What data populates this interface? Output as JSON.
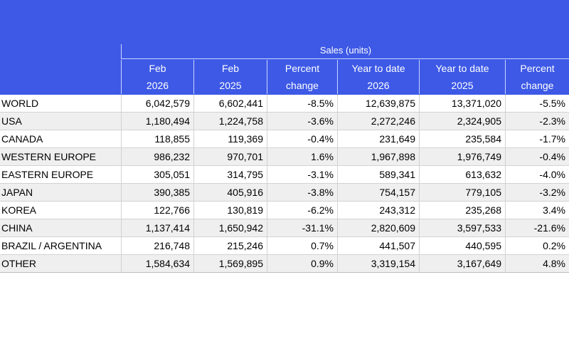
{
  "table": {
    "group_header": "Sales (units)",
    "columns": [
      {
        "line1": "Feb",
        "line2": "2026"
      },
      {
        "line1": "Feb",
        "line2": "2025"
      },
      {
        "line1": "Percent",
        "line2": "change"
      },
      {
        "line1": "Year to date",
        "line2": "2026"
      },
      {
        "line1": "Year to date",
        "line2": "2025"
      },
      {
        "line1": "Percent",
        "line2": "change"
      }
    ],
    "rows": [
      {
        "region": "WORLD",
        "feb_2026": "6,042,579",
        "feb_2025": "6,602,441",
        "pct_feb": "-8.5%",
        "ytd_2026": "12,639,875",
        "ytd_2025": "13,371,020",
        "pct_ytd": "-5.5%"
      },
      {
        "region": "USA",
        "feb_2026": "1,180,494",
        "feb_2025": "1,224,758",
        "pct_feb": "-3.6%",
        "ytd_2026": "2,272,246",
        "ytd_2025": "2,324,905",
        "pct_ytd": "-2.3%"
      },
      {
        "region": "CANADA",
        "feb_2026": "118,855",
        "feb_2025": "119,369",
        "pct_feb": "-0.4%",
        "ytd_2026": "231,649",
        "ytd_2025": "235,584",
        "pct_ytd": "-1.7%"
      },
      {
        "region": "WESTERN EUROPE",
        "feb_2026": "986,232",
        "feb_2025": "970,701",
        "pct_feb": "1.6%",
        "ytd_2026": "1,967,898",
        "ytd_2025": "1,976,749",
        "pct_ytd": "-0.4%"
      },
      {
        "region": "EASTERN EUROPE",
        "feb_2026": "305,051",
        "feb_2025": "314,795",
        "pct_feb": "-3.1%",
        "ytd_2026": "589,341",
        "ytd_2025": "613,632",
        "pct_ytd": "-4.0%"
      },
      {
        "region": "JAPAN",
        "feb_2026": "390,385",
        "feb_2025": "405,916",
        "pct_feb": "-3.8%",
        "ytd_2026": "754,157",
        "ytd_2025": "779,105",
        "pct_ytd": "-3.2%"
      },
      {
        "region": "KOREA",
        "feb_2026": "122,766",
        "feb_2025": "130,819",
        "pct_feb": "-6.2%",
        "ytd_2026": "243,312",
        "ytd_2025": "235,268",
        "pct_ytd": "3.4%"
      },
      {
        "region": "CHINA",
        "feb_2026": "1,137,414",
        "feb_2025": "1,650,942",
        "pct_feb": "-31.1%",
        "ytd_2026": "2,820,609",
        "ytd_2025": "3,597,533",
        "pct_ytd": "-21.6%"
      },
      {
        "region": "BRAZIL / ARGENTINA",
        "feb_2026": "216,748",
        "feb_2025": "215,246",
        "pct_feb": "0.7%",
        "ytd_2026": "441,507",
        "ytd_2025": "440,595",
        "pct_ytd": "0.2%"
      },
      {
        "region": "OTHER",
        "feb_2026": "1,584,634",
        "feb_2025": "1,569,895",
        "pct_feb": "0.9%",
        "ytd_2026": "3,319,154",
        "ytd_2025": "3,167,649",
        "pct_ytd": "4.8%"
      }
    ]
  },
  "colors": {
    "header_background": "#3d59e6",
    "header_text": "#ffffff",
    "alternate_row": "#efefef"
  }
}
